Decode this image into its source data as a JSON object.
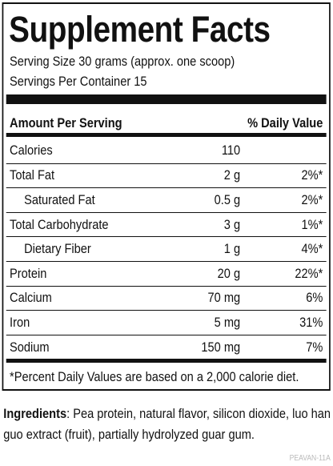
{
  "header": {
    "title": "Supplement Facts",
    "serving_size": "Serving Size 30 grams (approx. one scoop)",
    "servings_per_container": "Servings Per Container 15"
  },
  "table": {
    "columns": [
      "Amount Per Serving",
      "% Daily Value"
    ],
    "rows": [
      [
        "Calories",
        "110"
      ],
      [
        "Total Fat",
        "2 g",
        "2%*"
      ],
      [
        "Saturated Fat",
        "0.5 g",
        "2%*"
      ],
      [
        "Total Carbohydrate",
        "3 g",
        "1%*"
      ],
      [
        "Dietary Fiber",
        "1 g",
        "4%*"
      ],
      [
        "Protein",
        "20 g",
        "22%*"
      ],
      [
        "Calcium",
        "70 mg",
        "6%"
      ],
      [
        "Iron",
        "5 mg",
        "31%"
      ],
      [
        "Sodium",
        "150 mg",
        "7%"
      ]
    ],
    "footnote": "*Percent Daily Values are based on a 2,000 calorie diet."
  },
  "ingredients": {
    "label": "Ingredients",
    "text": ": Pea protein, natural flavor, silicon dioxide, luo han guo extract (fruit), partially hydrolyzed guar gum."
  },
  "code": "PEAVAN-11A"
}
